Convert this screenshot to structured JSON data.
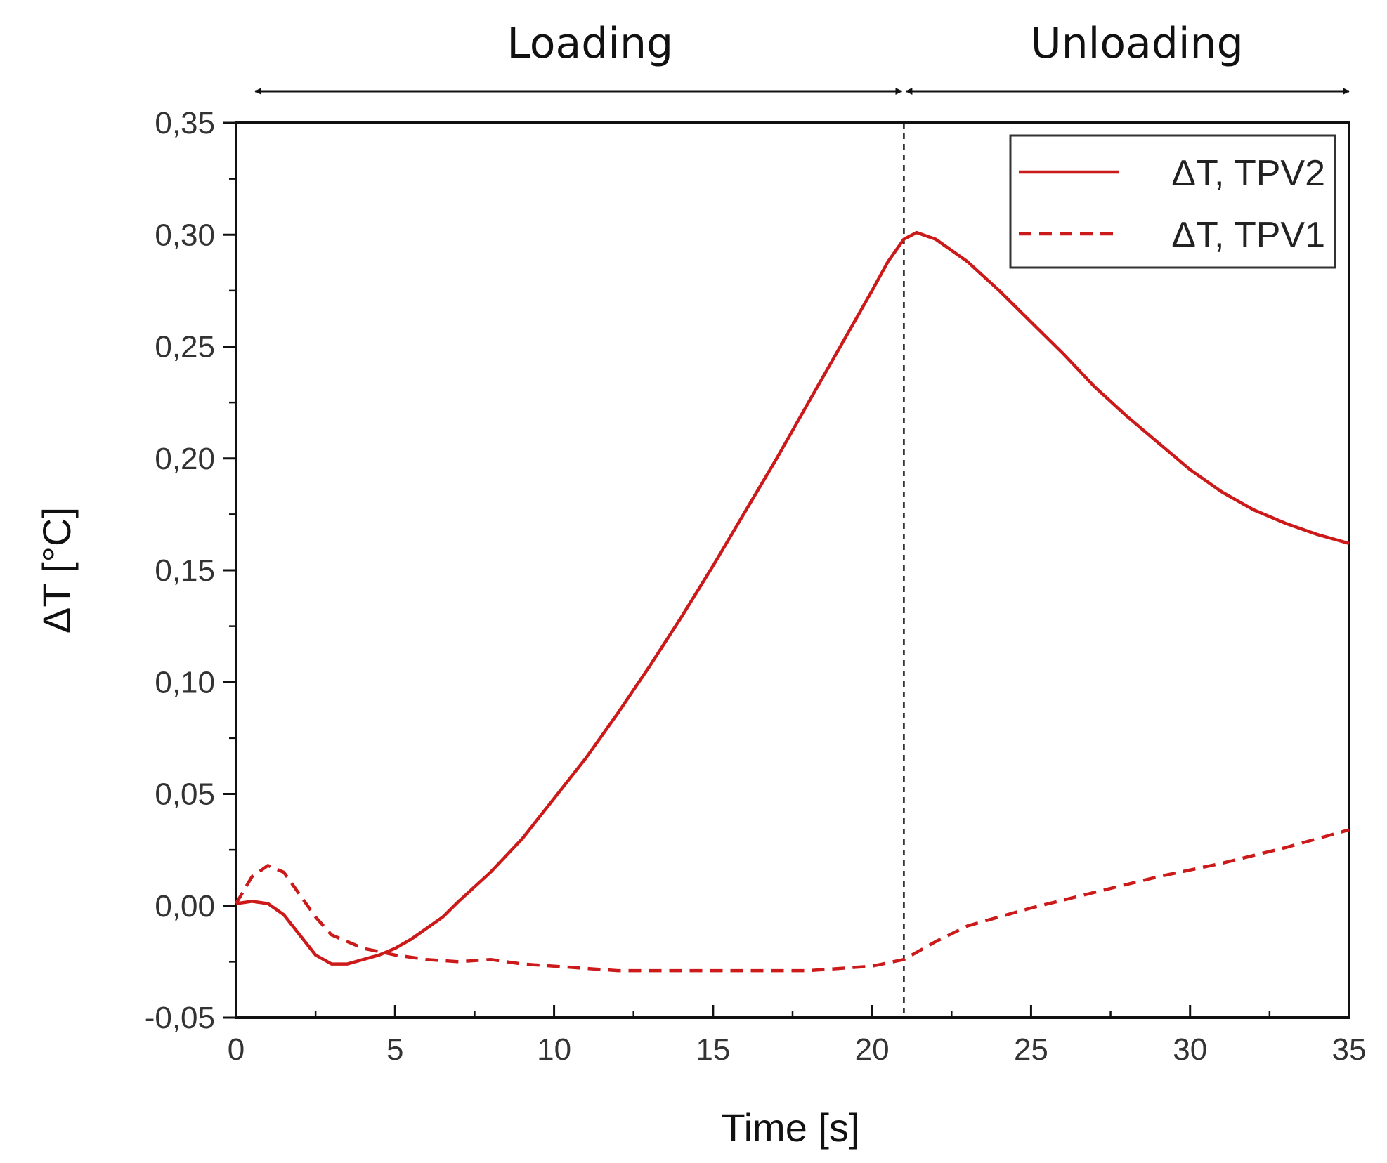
{
  "chart_data": {
    "type": "line",
    "title": "",
    "xlabel": "Time [s]",
    "ylabel": "ΔT [°C]",
    "xlim": [
      0,
      35
    ],
    "ylim": [
      -0.05,
      0.35
    ],
    "x_ticks": [
      {
        "value": 0,
        "label": "0"
      },
      {
        "value": 5,
        "label": "5"
      },
      {
        "value": 10,
        "label": "10"
      },
      {
        "value": 15,
        "label": "15"
      },
      {
        "value": 20,
        "label": "20"
      },
      {
        "value": 25,
        "label": "25"
      },
      {
        "value": 30,
        "label": "30"
      },
      {
        "value": 35,
        "label": "35"
      }
    ],
    "y_ticks": [
      {
        "value": -0.05,
        "label": "-0,05"
      },
      {
        "value": 0.0,
        "label": "0,00"
      },
      {
        "value": 0.05,
        "label": "0,05"
      },
      {
        "value": 0.1,
        "label": "0,10"
      },
      {
        "value": 0.15,
        "label": "0,15"
      },
      {
        "value": 0.2,
        "label": "0,20"
      },
      {
        "value": 0.25,
        "label": "0,25"
      },
      {
        "value": 0.3,
        "label": "0,30"
      },
      {
        "value": 0.35,
        "label": "0,35"
      }
    ],
    "x_minor_step": 2.5,
    "y_minor_step": 0.025,
    "grid": false,
    "legend_position": "top-right",
    "phases": [
      {
        "label": "Loading",
        "start": 0.6,
        "end": 21
      },
      {
        "label": "Unloading",
        "start": 21,
        "end": 35
      }
    ],
    "divider_x": 21,
    "series": [
      {
        "name": "ΔT, TPV2",
        "style": "solid",
        "color": "#cc1a1a",
        "x": [
          0,
          0.5,
          1,
          1.5,
          2,
          2.5,
          3,
          3.5,
          4,
          4.5,
          5,
          5.5,
          6,
          6.5,
          7,
          8,
          9,
          10,
          11,
          12,
          13,
          14,
          15,
          16,
          17,
          18,
          19,
          20,
          20.5,
          21,
          21.4,
          22,
          23,
          24,
          25,
          26,
          27,
          28,
          29,
          30,
          31,
          32,
          33,
          34,
          35
        ],
        "y": [
          0.001,
          0.002,
          0.001,
          -0.004,
          -0.013,
          -0.022,
          -0.026,
          -0.026,
          -0.024,
          -0.022,
          -0.019,
          -0.015,
          -0.01,
          -0.005,
          0.002,
          0.015,
          0.03,
          0.048,
          0.066,
          0.086,
          0.107,
          0.129,
          0.152,
          0.176,
          0.2,
          0.225,
          0.25,
          0.275,
          0.288,
          0.298,
          0.301,
          0.298,
          0.288,
          0.275,
          0.261,
          0.247,
          0.232,
          0.219,
          0.207,
          0.195,
          0.185,
          0.177,
          0.171,
          0.166,
          0.162
        ]
      },
      {
        "name": "ΔT, TPV1",
        "style": "dashed",
        "color": "#cc1a1a",
        "x": [
          0,
          0.5,
          1,
          1.5,
          2,
          2.5,
          3,
          4,
          5,
          6,
          7,
          8,
          9,
          10,
          12,
          15,
          18,
          20,
          21,
          22,
          23,
          25,
          27,
          29,
          31,
          33,
          35
        ],
        "y": [
          0.001,
          0.013,
          0.018,
          0.015,
          0.005,
          -0.005,
          -0.013,
          -0.019,
          -0.022,
          -0.024,
          -0.025,
          -0.024,
          -0.026,
          -0.027,
          -0.029,
          -0.029,
          -0.029,
          -0.027,
          -0.024,
          -0.016,
          -0.009,
          -0.001,
          0.006,
          0.013,
          0.019,
          0.026,
          0.034
        ]
      }
    ]
  }
}
